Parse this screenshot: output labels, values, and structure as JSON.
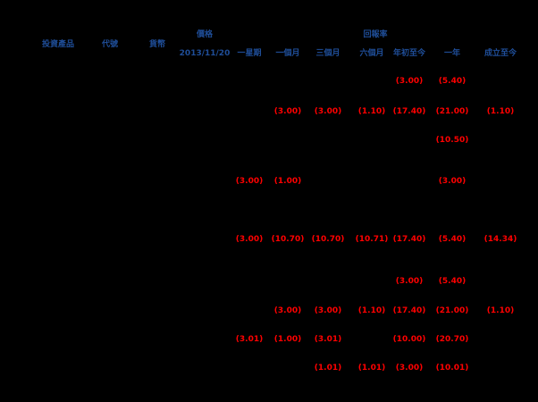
{
  "colors": {
    "background": "#000000",
    "header": "#1f4e99",
    "negative": "#ff0000"
  },
  "header": {
    "group_left_title": "價格",
    "group_left_sub": "2013/11/20",
    "group_right_title": "回報率",
    "columns": [
      "投資產品",
      "代號",
      "貨幣",
      "價格",
      "一星期",
      "一個月",
      "三個月",
      "六個月",
      "年初至今",
      "一年",
      "成立至今"
    ]
  },
  "rows": [
    [
      "",
      "",
      "",
      "",
      "",
      "",
      "",
      "",
      "(3.00)",
      "(5.40)",
      ""
    ],
    [
      "",
      "",
      "",
      "",
      "",
      "(3.00)",
      "(3.00)",
      "(1.10)",
      "(17.40)",
      "(21.00)",
      "(1.10)"
    ],
    [
      "",
      "",
      "",
      "",
      "",
      "",
      "",
      "",
      "",
      "(10.50)",
      ""
    ],
    [
      "",
      "",
      "",
      "",
      "(3.00)",
      "(1.00)",
      "",
      "",
      "",
      "(3.00)",
      ""
    ],
    [
      "",
      "",
      "",
      "",
      "(3.00)",
      "(10.70)",
      "(10.70)",
      "(10.71)",
      "(17.40)",
      "(5.40)",
      "(14.34)"
    ],
    [
      "",
      "",
      "",
      "",
      "",
      "",
      "",
      "",
      "(3.00)",
      "(5.40)",
      ""
    ],
    [
      "",
      "",
      "",
      "",
      "",
      "(3.00)",
      "(3.00)",
      "(1.10)",
      "(17.40)",
      "(21.00)",
      "(1.10)"
    ],
    [
      "",
      "",
      "",
      "",
      "(3.01)",
      "(1.00)",
      "(3.01)",
      "",
      "(10.00)",
      "(20.70)",
      ""
    ],
    [
      "",
      "",
      "",
      "",
      "",
      "",
      "(1.01)",
      "(1.01)",
      "(3.00)",
      "(10.01)",
      ""
    ]
  ]
}
